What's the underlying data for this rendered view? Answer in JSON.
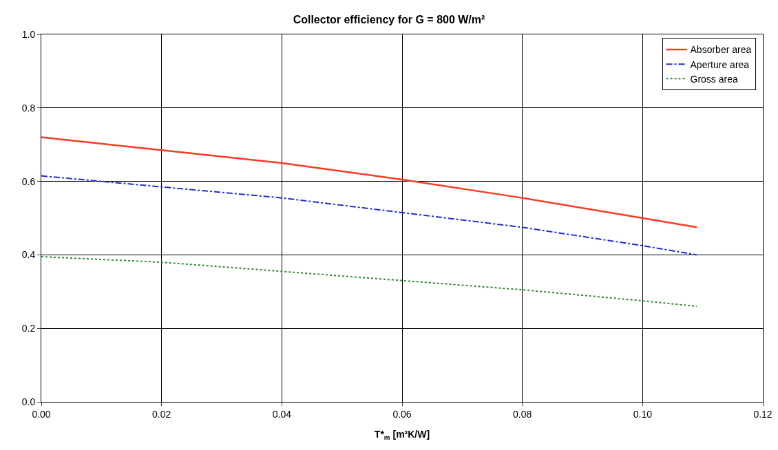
{
  "chart_data": {
    "type": "line",
    "title": "Collector efficiency for G = 800 W/m²",
    "xlabel": "T*$_{m}$ [m²K/W]",
    "xlim": [
      0,
      0.12
    ],
    "xticks": [
      {
        "value": 0,
        "label": "0.00"
      },
      {
        "value": 0.02,
        "label": "0.02"
      },
      {
        "value": 0.04,
        "label": "0.04"
      },
      {
        "value": 0.06,
        "label": "0.06"
      },
      {
        "value": 0.08,
        "label": "0.08"
      },
      {
        "value": 0.1,
        "label": "0.10"
      },
      {
        "value": 0.12,
        "label": "0.12"
      }
    ],
    "ylim": [
      0,
      1
    ],
    "yticks": [
      {
        "value": 0,
        "label": "0.0"
      },
      {
        "value": 0.2,
        "label": "0.2"
      },
      {
        "value": 0.4,
        "label": "0.4"
      },
      {
        "value": 0.6,
        "label": "0.6"
      },
      {
        "value": 0.8,
        "label": "0.8"
      },
      {
        "value": 1,
        "label": "1.0"
      }
    ],
    "grid": true,
    "legend": "top right",
    "marker": "none",
    "x": [
      0,
      0.02,
      0.04,
      0.06,
      0.08,
      0.1,
      0.109
    ],
    "series": [
      {
        "name": "Absorber area",
        "color": "#ff3b1f",
        "line_style": "solid",
        "values": [
          0.72,
          0.685,
          0.65,
          0.605,
          0.555,
          0.5,
          0.475
        ]
      },
      {
        "name": "Aperture area",
        "color": "#1f2fd0",
        "line_style": "dashed",
        "values": [
          0.615,
          0.585,
          0.555,
          0.515,
          0.475,
          0.425,
          0.4
        ]
      },
      {
        "name": "Gross area",
        "color": "#2a8a2a",
        "line_style": "dotted",
        "values": [
          0.395,
          0.38,
          0.355,
          0.33,
          0.305,
          0.275,
          0.26
        ]
      }
    ]
  }
}
